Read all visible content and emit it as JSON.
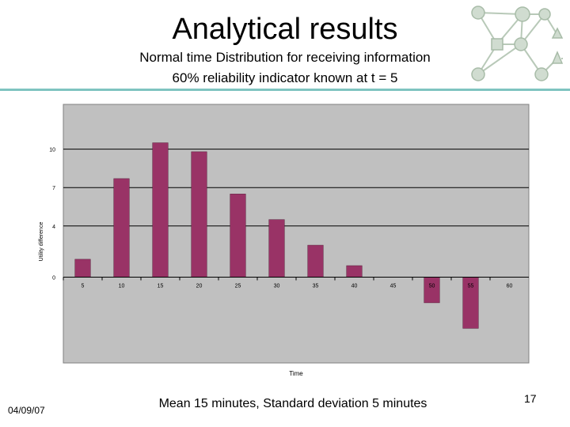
{
  "slide": {
    "title": "Analytical results",
    "subtitle_line1": "Normal time Distribution for receiving information",
    "subtitle_line2": "60% reliability indicator known at t = 5",
    "footer_date": "04/09/07",
    "footer_note": "Mean 15 minutes, Standard deviation 5 minutes",
    "page_number": "17"
  },
  "colors": {
    "bar": "#993366",
    "plot_bg": "#c0c0c0",
    "rule": "#7fc4c0"
  },
  "chart_data": {
    "type": "bar",
    "title": "",
    "xlabel": "Time",
    "ylabel": "Utility difference",
    "categories": [
      "5",
      "10",
      "15",
      "20",
      "25",
      "30",
      "35",
      "40",
      "45",
      "50",
      "55",
      "60"
    ],
    "values": [
      1.4,
      7.7,
      10.5,
      9.8,
      6.5,
      4.5,
      2.5,
      0.9,
      0,
      -2.0,
      -4.0,
      0
    ],
    "ylim": [
      -6.7,
      13.5
    ],
    "y_ticks": [
      0,
      4,
      7,
      10
    ],
    "y_tick_labels": [
      "0",
      "4",
      "7",
      "10"
    ],
    "grid": true,
    "legend": "none"
  }
}
